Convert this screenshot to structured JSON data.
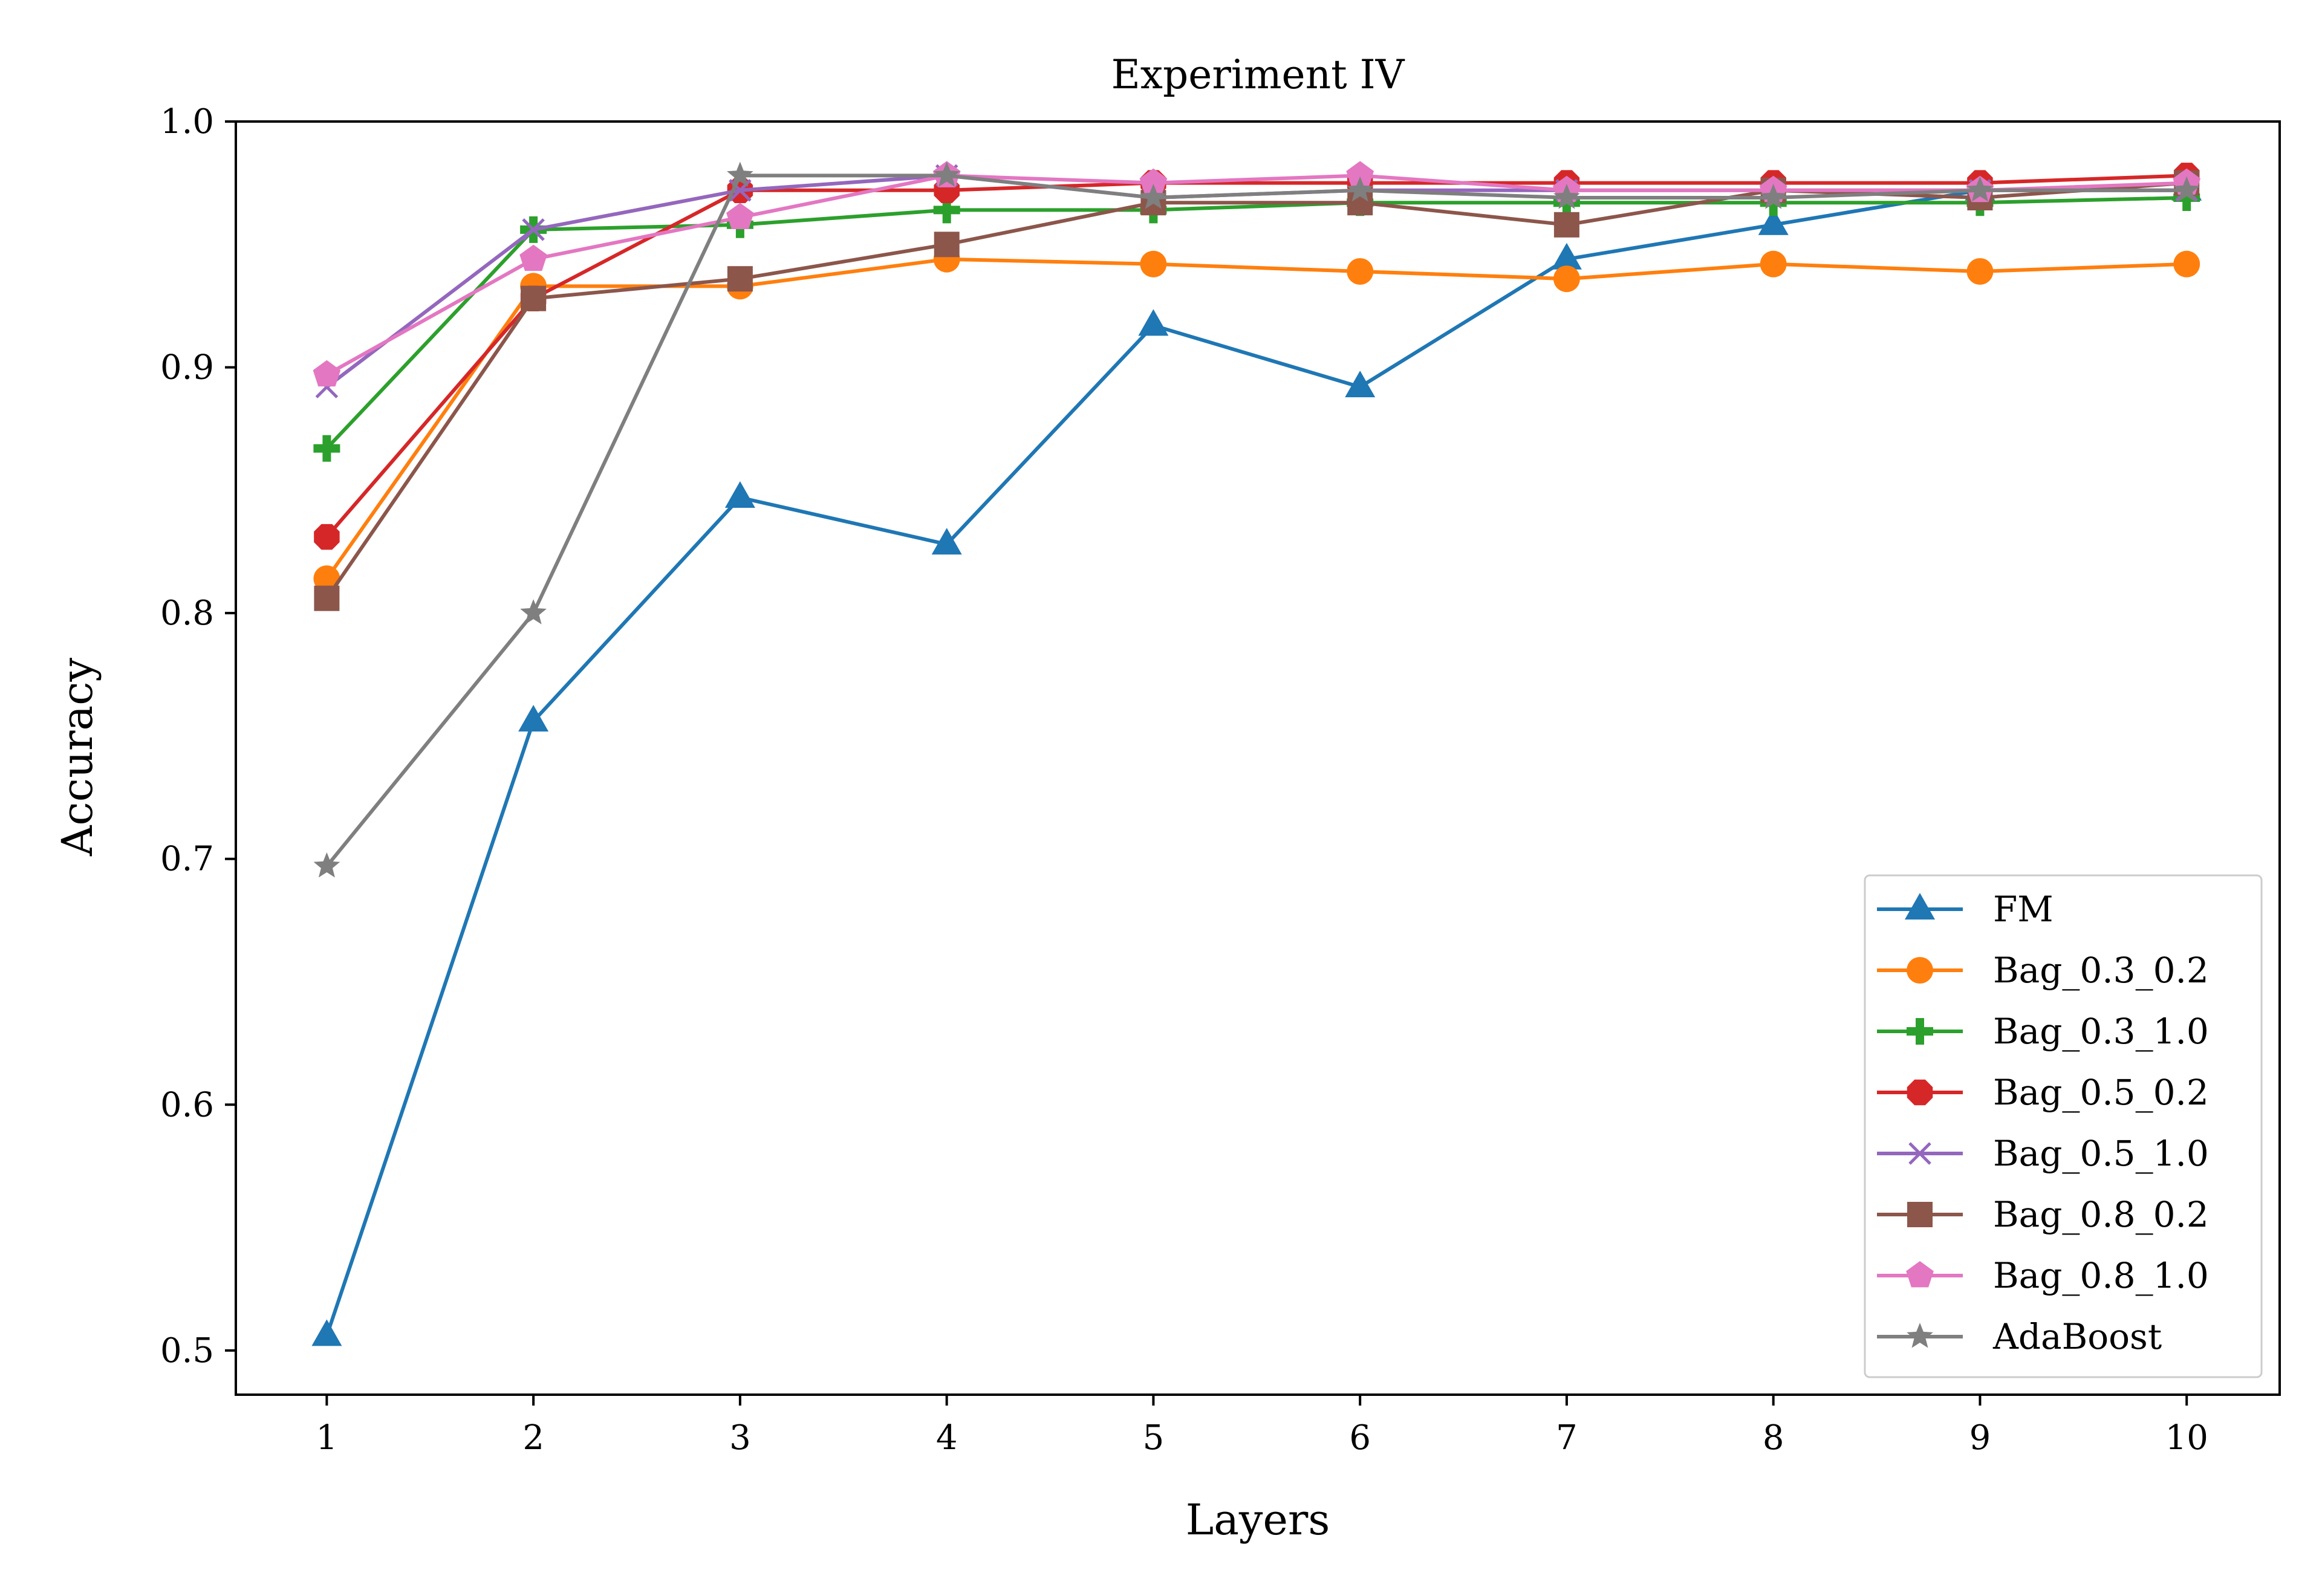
{
  "chart_data": {
    "type": "line",
    "title": "Experiment IV",
    "xlabel": "Layers",
    "ylabel": "Accuracy",
    "x": [
      1,
      2,
      3,
      4,
      5,
      6,
      7,
      8,
      9,
      10
    ],
    "xticks": [
      "1",
      "2",
      "3",
      "4",
      "5",
      "6",
      "7",
      "8",
      "9",
      "10"
    ],
    "yticks": [
      "0.5",
      "0.6",
      "0.7",
      "0.8",
      "0.9",
      "1.0"
    ],
    "ylim": [
      0.482,
      1.0
    ],
    "xlim": [
      0.56,
      10.45
    ],
    "grid": false,
    "legend_position": "lower-right",
    "series": [
      {
        "name": "FM",
        "color": "#1f77b4",
        "marker": "triangle",
        "values": [
          0.506,
          0.756,
          0.847,
          0.828,
          0.917,
          0.892,
          0.944,
          0.958,
          0.972,
          0.972
        ]
      },
      {
        "name": "Bag_0.3_0.2",
        "color": "#ff7f0e",
        "marker": "circle",
        "values": [
          0.814,
          0.933,
          0.933,
          0.944,
          0.942,
          0.939,
          0.936,
          0.942,
          0.939,
          0.942
        ]
      },
      {
        "name": "Bag_0.3_1.0",
        "color": "#2ca02c",
        "marker": "plus",
        "values": [
          0.867,
          0.956,
          0.958,
          0.964,
          0.964,
          0.967,
          0.967,
          0.967,
          0.967,
          0.969
        ]
      },
      {
        "name": "Bag_0.5_0.2",
        "color": "#d62728",
        "marker": "octagon",
        "values": [
          0.831,
          0.928,
          0.972,
          0.972,
          0.975,
          0.975,
          0.975,
          0.975,
          0.975,
          0.978
        ]
      },
      {
        "name": "Bag_0.5_1.0",
        "color": "#9467bd",
        "marker": "x",
        "values": [
          0.892,
          0.956,
          0.972,
          0.978,
          0.969,
          0.972,
          0.972,
          0.972,
          0.972,
          0.972
        ]
      },
      {
        "name": "Bag_0.8_0.2",
        "color": "#8c564b",
        "marker": "square",
        "values": [
          0.806,
          0.928,
          0.936,
          0.95,
          0.967,
          0.967,
          0.958,
          0.972,
          0.969,
          0.975
        ]
      },
      {
        "name": "Bag_0.8_1.0",
        "color": "#e377c2",
        "marker": "pentagon",
        "values": [
          0.897,
          0.944,
          0.961,
          0.978,
          0.975,
          0.978,
          0.972,
          0.972,
          0.972,
          0.975
        ]
      },
      {
        "name": "AdaBoost",
        "color": "#7f7f7f",
        "marker": "star",
        "values": [
          0.697,
          0.8,
          0.978,
          0.978,
          0.969,
          0.972,
          0.969,
          0.969,
          0.972,
          0.972
        ]
      }
    ]
  }
}
